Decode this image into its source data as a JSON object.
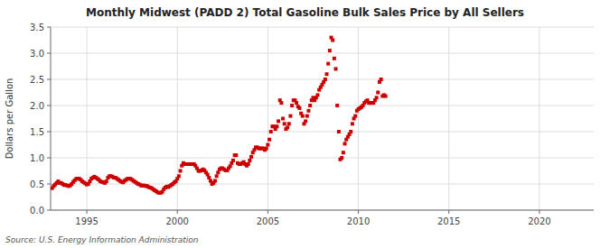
{
  "chart_data": {
    "type": "scatter",
    "title": "Monthly Midwest (PADD 2) Total Gasoline Bulk Sales Price by All Sellers",
    "ylabel": "Dollars per Gallon",
    "source": "Source: U.S. Energy Information Administration",
    "color": "#cc0000",
    "marker": "square",
    "grid": true,
    "xlim": [
      1993.0,
      2023.0
    ],
    "ylim": [
      0.0,
      3.5
    ],
    "xticks": [
      1995,
      2000,
      2005,
      2010,
      2015,
      2020
    ],
    "yticks": [
      {
        "value": 0.0,
        "label": "0.0"
      },
      0.5,
      {
        "value": 1.0,
        "label": "1.0"
      },
      1.5,
      {
        "value": 2.0,
        "label": "2.0"
      },
      2.5,
      {
        "value": 3.0,
        "label": "3.0"
      },
      3.5
    ],
    "x": [
      1993.083,
      1993.167,
      1993.25,
      1993.333,
      1993.417,
      1993.5,
      1993.583,
      1993.667,
      1993.75,
      1993.833,
      1993.917,
      1994.0,
      1994.083,
      1994.167,
      1994.25,
      1994.333,
      1994.417,
      1994.5,
      1994.583,
      1994.667,
      1994.75,
      1994.833,
      1994.917,
      1995.0,
      1995.083,
      1995.167,
      1995.25,
      1995.333,
      1995.417,
      1995.5,
      1995.583,
      1995.667,
      1995.75,
      1995.833,
      1995.917,
      1996.0,
      1996.083,
      1996.167,
      1996.25,
      1996.333,
      1996.417,
      1996.5,
      1996.583,
      1996.667,
      1996.75,
      1996.833,
      1996.917,
      1997.0,
      1997.083,
      1997.167,
      1997.25,
      1997.333,
      1997.417,
      1997.5,
      1997.583,
      1997.667,
      1997.75,
      1997.833,
      1997.917,
      1998.0,
      1998.083,
      1998.167,
      1998.25,
      1998.333,
      1998.417,
      1998.5,
      1998.583,
      1998.667,
      1998.75,
      1998.833,
      1998.917,
      1999.0,
      1999.083,
      1999.167,
      1999.25,
      1999.333,
      1999.417,
      1999.5,
      1999.583,
      1999.667,
      1999.75,
      1999.833,
      1999.917,
      2000.0,
      2000.083,
      2000.167,
      2000.25,
      2000.333,
      2000.417,
      2000.5,
      2000.583,
      2000.667,
      2000.75,
      2000.833,
      2000.917,
      2001.0,
      2001.083,
      2001.167,
      2001.25,
      2001.333,
      2001.417,
      2001.5,
      2001.583,
      2001.667,
      2001.75,
      2001.833,
      2001.917,
      2002.0,
      2002.083,
      2002.167,
      2002.25,
      2002.333,
      2002.417,
      2002.5,
      2002.583,
      2002.667,
      2002.75,
      2002.833,
      2002.917,
      2003.0,
      2003.083,
      2003.167,
      2003.25,
      2003.333,
      2003.417,
      2003.5,
      2003.583,
      2003.667,
      2003.75,
      2003.833,
      2003.917,
      2004.0,
      2004.083,
      2004.167,
      2004.25,
      2004.333,
      2004.417,
      2004.5,
      2004.583,
      2004.667,
      2004.75,
      2004.833,
      2004.917,
      2005.0,
      2005.083,
      2005.167,
      2005.25,
      2005.333,
      2005.417,
      2005.5,
      2005.583,
      2005.667,
      2005.75,
      2005.833,
      2005.917,
      2006.0,
      2006.083,
      2006.167,
      2006.25,
      2006.333,
      2006.417,
      2006.5,
      2006.583,
      2006.667,
      2006.75,
      2006.833,
      2006.917,
      2007.0,
      2007.083,
      2007.167,
      2007.25,
      2007.333,
      2007.417,
      2007.5,
      2007.583,
      2007.667,
      2007.75,
      2007.833,
      2007.917,
      2008.0,
      2008.083,
      2008.167,
      2008.25,
      2008.333,
      2008.417,
      2008.5,
      2008.583,
      2008.667,
      2008.75,
      2008.833,
      2008.917,
      2009.0,
      2009.083,
      2009.167,
      2009.25,
      2009.333,
      2009.417,
      2009.5,
      2009.583,
      2009.667,
      2009.75,
      2009.833,
      2009.917,
      2010.0,
      2010.083,
      2010.167,
      2010.25,
      2010.333,
      2010.417,
      2010.5,
      2010.583,
      2010.667,
      2010.75,
      2010.833,
      2010.917,
      2011.0,
      2011.083,
      2011.167,
      2011.25,
      2011.333,
      2011.417,
      2011.5
    ],
    "values": [
      0.42,
      0.46,
      0.49,
      0.52,
      0.55,
      0.52,
      0.52,
      0.5,
      0.48,
      0.48,
      0.47,
      0.46,
      0.47,
      0.5,
      0.54,
      0.57,
      0.6,
      0.6,
      0.6,
      0.58,
      0.55,
      0.53,
      0.51,
      0.49,
      0.5,
      0.55,
      0.6,
      0.62,
      0.64,
      0.62,
      0.6,
      0.58,
      0.55,
      0.54,
      0.53,
      0.52,
      0.55,
      0.62,
      0.65,
      0.65,
      0.64,
      0.62,
      0.62,
      0.6,
      0.58,
      0.56,
      0.54,
      0.53,
      0.56,
      0.58,
      0.6,
      0.6,
      0.6,
      0.58,
      0.56,
      0.54,
      0.52,
      0.5,
      0.49,
      0.47,
      0.47,
      0.47,
      0.46,
      0.46,
      0.44,
      0.43,
      0.42,
      0.4,
      0.38,
      0.36,
      0.34,
      0.33,
      0.33,
      0.35,
      0.4,
      0.43,
      0.45,
      0.44,
      0.46,
      0.48,
      0.5,
      0.53,
      0.55,
      0.6,
      0.65,
      0.75,
      0.85,
      0.9,
      0.88,
      0.88,
      0.88,
      0.88,
      0.88,
      0.88,
      0.88,
      0.85,
      0.8,
      0.75,
      0.75,
      0.76,
      0.78,
      0.76,
      0.72,
      0.68,
      0.62,
      0.56,
      0.5,
      0.52,
      0.56,
      0.65,
      0.72,
      0.78,
      0.8,
      0.8,
      0.78,
      0.76,
      0.76,
      0.8,
      0.84,
      0.9,
      0.95,
      1.05,
      1.05,
      0.9,
      0.88,
      0.88,
      0.9,
      0.92,
      0.88,
      0.85,
      0.88,
      0.95,
      1.02,
      1.1,
      1.15,
      1.2,
      1.2,
      1.18,
      1.18,
      1.18,
      1.18,
      1.15,
      1.18,
      1.25,
      1.35,
      1.5,
      1.6,
      1.6,
      1.55,
      1.6,
      1.7,
      2.1,
      2.05,
      1.75,
      1.65,
      1.55,
      1.58,
      1.65,
      1.8,
      2.0,
      2.1,
      2.1,
      2.05,
      1.98,
      1.95,
      1.85,
      1.8,
      1.65,
      1.7,
      1.8,
      1.9,
      2.0,
      2.1,
      2.15,
      2.1,
      2.15,
      2.2,
      2.3,
      2.35,
      2.4,
      2.45,
      2.5,
      2.6,
      2.8,
      3.05,
      3.3,
      3.25,
      2.9,
      2.7,
      2.0,
      1.5,
      0.97,
      1.0,
      1.1,
      1.27,
      1.35,
      1.4,
      1.45,
      1.5,
      1.65,
      1.75,
      1.8,
      1.9,
      1.93,
      1.95,
      1.97,
      2.0,
      2.05,
      2.08,
      2.1,
      2.05,
      2.05,
      2.05,
      2.05,
      2.1,
      2.15,
      2.25,
      2.45,
      2.5,
      2.18,
      2.2,
      2.18
    ]
  }
}
